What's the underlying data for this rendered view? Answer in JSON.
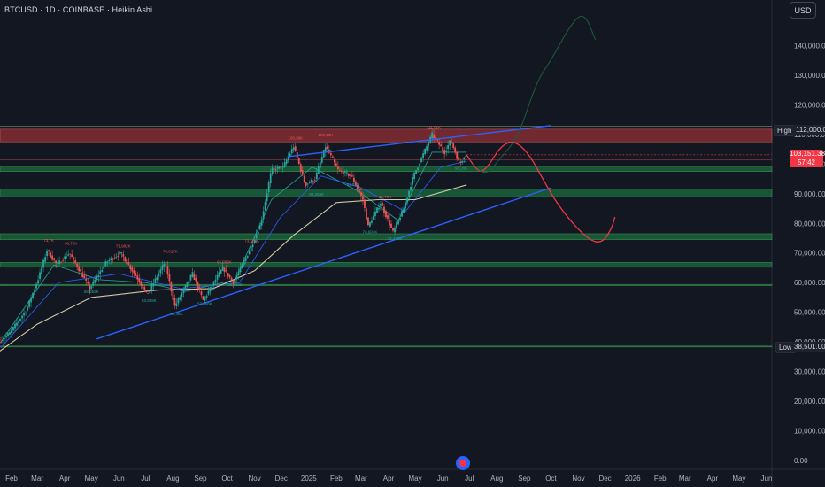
{
  "header": {
    "title": "BTCUSD · 1D · COINBASE · Heikin Ashi"
  },
  "currency_button": {
    "label": "USD"
  },
  "price_tags": {
    "high_label": "High",
    "high_value": "112,000.00",
    "last_price": "103,151.38",
    "countdown": "57:42",
    "low_label": "Low",
    "low_value": "38,501.00"
  },
  "colors": {
    "background": "#131722",
    "bull": "#26a69a",
    "bear": "#ef5350",
    "resistance_zone": "#c0393b",
    "support_zone": "#1e8a4a",
    "trendline": "#2962ff",
    "projection": "#f23645",
    "projection_alt": "#1b5e3a",
    "ma_fast": "#26a69a",
    "ma_mid": "#2962ff",
    "ma_slow": "#e8dcb0"
  },
  "chart_data": {
    "type": "candlestick",
    "symbol": "BTCUSD",
    "interval": "1D",
    "exchange": "COINBASE",
    "candle_style": "Heikin Ashi",
    "ylim": [
      0,
      150000
    ],
    "y_ticks": [
      "0.00",
      "10,000.00",
      "20,000.00",
      "30,000.00",
      "40,000.00",
      "50,000.00",
      "60,000.00",
      "70,000.00",
      "80,000.00",
      "90,000.00",
      "100,000.00",
      "110,000.00",
      "120,000.00",
      "130,000.00",
      "140,000.00"
    ],
    "x_labels": [
      "Feb",
      "Mar",
      "Apr",
      "May",
      "Jun",
      "Jul",
      "Aug",
      "Sep",
      "Oct",
      "Nov",
      "Dec",
      "2025",
      "Feb",
      "Mar",
      "Apr",
      "May",
      "Jun",
      "Jul",
      "Aug",
      "Sep",
      "Oct",
      "Nov",
      "Dec",
      "2026",
      "Feb",
      "Mar",
      "Apr",
      "May",
      "Jun"
    ],
    "x_start": "2024-02-01",
    "x_end": "2026-06-01",
    "price_path": [
      [
        "2024-01-20",
        40000
      ],
      [
        "2024-02-01",
        43000
      ],
      [
        "2024-02-20",
        51000
      ],
      [
        "2024-03-05",
        62000
      ],
      [
        "2024-03-14",
        71000
      ],
      [
        "2024-03-25",
        66000
      ],
      [
        "2024-04-08",
        70000
      ],
      [
        "2024-04-20",
        64000
      ],
      [
        "2024-05-01",
        58000
      ],
      [
        "2024-05-20",
        67000
      ],
      [
        "2024-06-05",
        70000
      ],
      [
        "2024-06-25",
        61000
      ],
      [
        "2024-07-05",
        56000
      ],
      [
        "2024-07-25",
        67000
      ],
      [
        "2024-08-05",
        52000
      ],
      [
        "2024-08-25",
        63000
      ],
      [
        "2024-09-06",
        54000
      ],
      [
        "2024-09-28",
        65000
      ],
      [
        "2024-10-10",
        60000
      ],
      [
        "2024-10-30",
        72000
      ],
      [
        "2024-11-10",
        80000
      ],
      [
        "2024-11-22",
        98000
      ],
      [
        "2024-12-05",
        99000
      ],
      [
        "2024-12-17",
        106000
      ],
      [
        "2024-12-30",
        93000
      ],
      [
        "2025-01-10",
        95000
      ],
      [
        "2025-01-22",
        106000
      ],
      [
        "2025-02-05",
        98000
      ],
      [
        "2025-02-20",
        96000
      ],
      [
        "2025-03-05",
        88000
      ],
      [
        "2025-03-11",
        79000
      ],
      [
        "2025-03-25",
        87000
      ],
      [
        "2025-04-08",
        77000
      ],
      [
        "2025-04-20",
        85000
      ],
      [
        "2025-05-01",
        96000
      ],
      [
        "2025-05-22",
        110000
      ],
      [
        "2025-06-05",
        104000
      ],
      [
        "2025-06-12",
        108000
      ],
      [
        "2025-06-22",
        100000
      ],
      [
        "2025-06-28",
        103151
      ]
    ],
    "moving_averages": [
      {
        "name": "ma_fast",
        "points": [
          [
            "2024-01-20",
            40000
          ],
          [
            "2024-03-20",
            66000
          ],
          [
            "2024-05-10",
            61000
          ],
          [
            "2024-07-01",
            60000
          ],
          [
            "2024-08-15",
            57000
          ],
          [
            "2024-10-10",
            61000
          ],
          [
            "2024-11-20",
            88000
          ],
          [
            "2025-01-05",
            99000
          ],
          [
            "2025-02-25",
            91000
          ],
          [
            "2025-04-12",
            81000
          ],
          [
            "2025-05-20",
            104000
          ],
          [
            "2025-06-28",
            104000
          ]
        ]
      },
      {
        "name": "ma_mid",
        "points": [
          [
            "2024-01-20",
            38000
          ],
          [
            "2024-03-25",
            60000
          ],
          [
            "2024-06-01",
            63000
          ],
          [
            "2024-08-10",
            58000
          ],
          [
            "2024-10-15",
            60000
          ],
          [
            "2024-11-30",
            82000
          ],
          [
            "2025-01-15",
            96000
          ],
          [
            "2025-03-01",
            92000
          ],
          [
            "2025-04-20",
            84000
          ],
          [
            "2025-05-30",
            99000
          ],
          [
            "2025-06-28",
            101000
          ]
        ]
      },
      {
        "name": "ma_slow",
        "points": [
          [
            "2024-01-10",
            35000
          ],
          [
            "2024-03-01",
            46000
          ],
          [
            "2024-05-01",
            55000
          ],
          [
            "2024-07-15",
            57500
          ],
          [
            "2024-09-15",
            58000
          ],
          [
            "2024-11-01",
            64000
          ],
          [
            "2024-12-15",
            76000
          ],
          [
            "2025-02-01",
            87000
          ],
          [
            "2025-03-20",
            88000
          ],
          [
            "2025-05-01",
            88000
          ],
          [
            "2025-06-28",
            93000
          ]
        ]
      }
    ],
    "zones": [
      {
        "kind": "resistance",
        "from": 107500,
        "to": 111800
      },
      {
        "kind": "support",
        "from": 97500,
        "to": 99000
      },
      {
        "kind": "support",
        "from": 89000,
        "to": 91500
      },
      {
        "kind": "support",
        "from": 74500,
        "to": 76500
      },
      {
        "kind": "support",
        "from": 65200,
        "to": 66800
      },
      {
        "kind": "support",
        "from": 59000,
        "to": 59400
      },
      {
        "kind": "support",
        "from": 38400,
        "to": 38600
      }
    ],
    "trendlines": [
      {
        "from": [
          "2024-12-08",
          102500
        ],
        "to": [
          "2025-10-01",
          113000
        ],
        "color": "trendline"
      },
      {
        "from": [
          "2024-05-07",
          41000
        ],
        "to": [
          "2025-10-01",
          92000
        ],
        "color": "trendline"
      }
    ],
    "projections": [
      {
        "style": "projection",
        "points": [
          [
            "2025-06-28",
            103000
          ],
          [
            "2025-07-12",
            97000
          ],
          [
            "2025-07-22",
            99000
          ],
          [
            "2025-08-05",
            106000
          ],
          [
            "2025-08-20",
            108000
          ],
          [
            "2025-09-05",
            104000
          ],
          [
            "2025-09-20",
            96000
          ],
          [
            "2025-10-05",
            88000
          ],
          [
            "2025-10-25",
            80000
          ],
          [
            "2025-11-15",
            74000
          ],
          [
            "2025-11-28",
            73500
          ],
          [
            "2025-12-08",
            78000
          ],
          [
            "2025-12-12",
            82000
          ]
        ]
      },
      {
        "style": "projection_alt",
        "points": [
          [
            "2025-07-05",
            100000
          ],
          [
            "2025-07-20",
            96000
          ],
          [
            "2025-08-05",
            102000
          ],
          [
            "2025-08-25",
            109000
          ],
          [
            "2025-09-15",
            128000
          ],
          [
            "2025-10-01",
            135000
          ],
          [
            "2025-10-25",
            148000
          ],
          [
            "2025-11-08",
            151000
          ],
          [
            "2025-11-20",
            142000
          ]
        ]
      }
    ],
    "annotations": [
      {
        "date": "2024-03-14",
        "price": 73800,
        "text": "73,7K"
      },
      {
        "date": "2024-04-08",
        "price": 72700,
        "text": "66,72K"
      },
      {
        "date": "2024-06-06",
        "price": 71900,
        "text": "71,982K"
      },
      {
        "date": "2024-07-29",
        "price": 70000,
        "text": "70,017K"
      },
      {
        "date": "2024-09-28",
        "price": 66500,
        "text": "65,289K"
      },
      {
        "date": "2024-10-29",
        "price": 73600,
        "text": "73,581K"
      },
      {
        "date": "2024-12-17",
        "price": 108300,
        "text": "108,38K"
      },
      {
        "date": "2025-01-20",
        "price": 109400,
        "text": "109,18K"
      },
      {
        "date": "2025-02-20",
        "price": 92600,
        "text": "92,51K"
      },
      {
        "date": "2025-03-28",
        "price": 88400,
        "text": "88,79K"
      },
      {
        "date": "2025-05-22",
        "price": 111900,
        "text": "111,96K"
      },
      {
        "date": "2024-05-01",
        "price": 56500,
        "text": "56,552K"
      },
      {
        "date": "2024-07-05",
        "price": 53500,
        "text": "53,885K"
      },
      {
        "date": "2024-08-05",
        "price": 49000,
        "text": "49,48K"
      },
      {
        "date": "2024-09-06",
        "price": 52500,
        "text": "52,566K"
      },
      {
        "date": "2024-10-10",
        "price": 58900,
        "text": "58,895K"
      },
      {
        "date": "2025-01-10",
        "price": 89300,
        "text": "89,256K"
      },
      {
        "date": "2025-03-11",
        "price": 76600,
        "text": "76,604K"
      },
      {
        "date": "2025-04-08",
        "price": 74400,
        "text": "74,420K"
      },
      {
        "date": "2025-06-22",
        "price": 98200,
        "text": "98,20K"
      }
    ]
  }
}
